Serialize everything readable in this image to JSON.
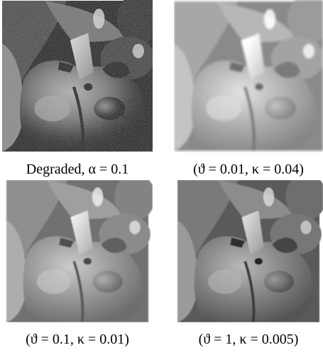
{
  "figure": {
    "panels": [
      {
        "caption": "Degraded, α = 0.1"
      },
      {
        "caption": "(ϑ = 0.01, κ = 0.04)"
      },
      {
        "caption": "(ϑ = 0.1, κ = 0.01)"
      },
      {
        "caption": "(ϑ = 1, κ = 0.005)"
      }
    ]
  }
}
